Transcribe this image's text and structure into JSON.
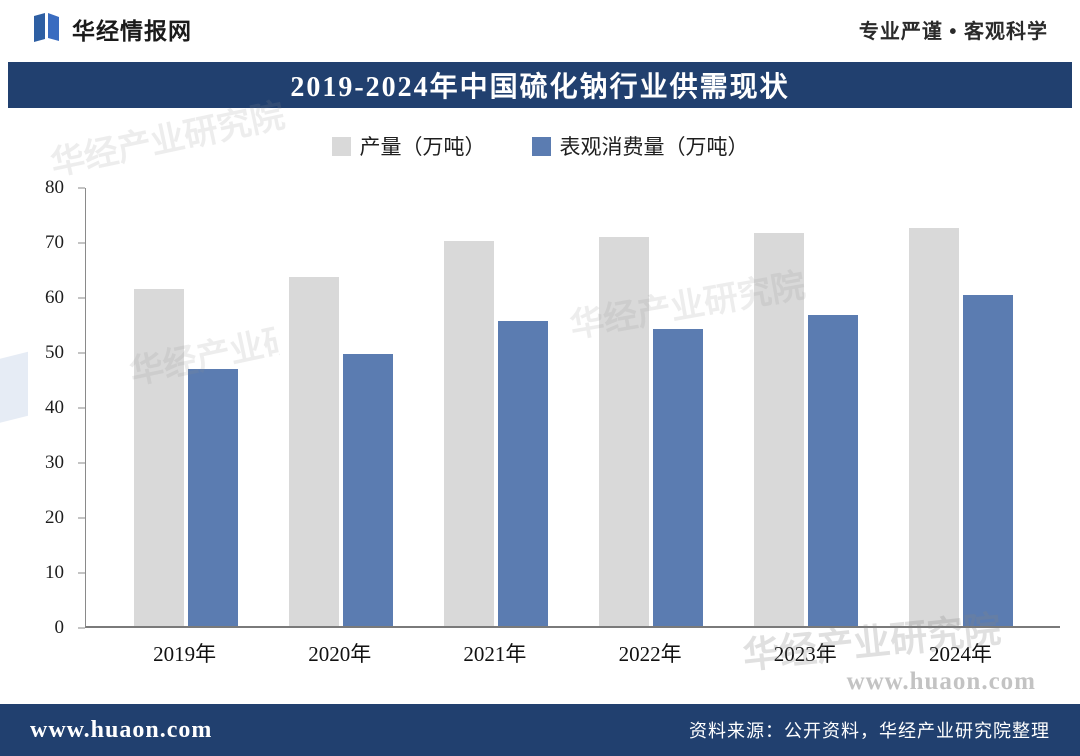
{
  "header": {
    "brand": "华经情报网",
    "tagline": "专业严谨 • 客观科学"
  },
  "title_banner": {
    "title": "2019-2024年中国硫化钠行业供需现状"
  },
  "colors": {
    "banner_blue": "#21406f",
    "footer_blue": "#21406f",
    "bar_gray": "#d9d9d9",
    "bar_blue": "#5b7cb1",
    "logo_blue": "#2e5fa3"
  },
  "chart_data": {
    "type": "bar",
    "title": "2019-2024年中国硫化钠行业供需现状",
    "categories": [
      "2019年",
      "2020年",
      "2021年",
      "2022年",
      "2023年",
      "2024年"
    ],
    "series": [
      {
        "name": "产量（万吨）",
        "color": "#d9d9d9",
        "values": [
          61.6,
          63.8,
          70.4,
          71.1,
          71.8,
          72.7
        ]
      },
      {
        "name": "表观消费量（万吨）",
        "color": "#5b7cb1",
        "values": [
          47.0,
          49.6,
          55.8,
          54.2,
          56.8,
          60.5
        ]
      }
    ],
    "xlabel": "",
    "ylabel": "",
    "ylim": [
      0,
      80
    ],
    "ytick_step": 10,
    "grid": false,
    "legend_position": "top"
  },
  "watermark": {
    "text": "华经产业研究院",
    "site": "www.huaon.com"
  },
  "footer": {
    "site": "www.huaon.com",
    "source": "资料来源：公开资料，华经产业研究院整理"
  }
}
